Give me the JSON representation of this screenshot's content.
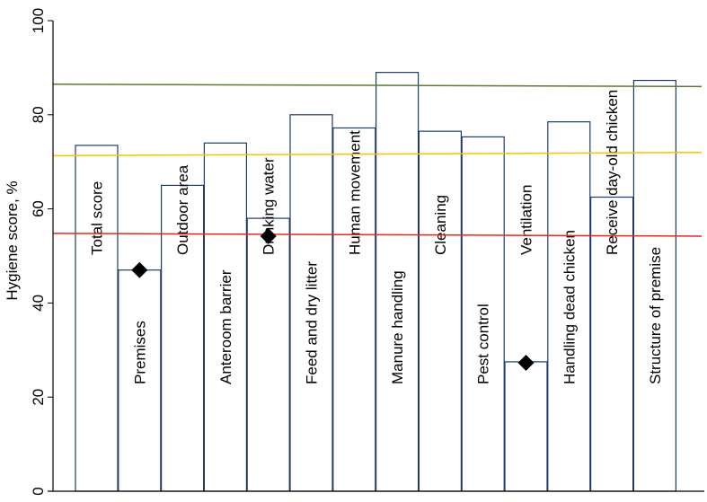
{
  "chart_data": {
    "type": "bar",
    "ylabel": "Hygiene score, %",
    "xlabel": "",
    "ylim": [
      0,
      100
    ],
    "yticks": [
      0,
      20,
      40,
      60,
      80,
      100
    ],
    "ytick_labels": [
      "0",
      "20",
      "40",
      "60",
      "80",
      "100"
    ],
    "categories": [
      "Total score",
      "Premises",
      "Outdoor area",
      "Anteroom barrier",
      "Drinking water",
      "Feed and dry litter",
      "Human movement",
      "Manure handling",
      "Cleaning",
      "Pest control",
      "Ventilation",
      "Handling dead chicken",
      "Receive day-old chicken",
      "Structure of premise"
    ],
    "values": [
      73.5,
      47,
      65,
      74,
      58,
      80,
      77.2,
      89,
      76.5,
      75.3,
      27.5,
      78.5,
      62.5,
      87.3
    ],
    "markers": [
      {
        "category": "Premises",
        "value": 47
      },
      {
        "category": "Drinking water",
        "value": 54.2
      },
      {
        "category": "Ventilation",
        "value": 27.3
      }
    ],
    "reference_lines": [
      {
        "name": "green",
        "color": "#5a7a2e",
        "start": 86.5,
        "end": 86.0
      },
      {
        "name": "yellow",
        "color": "#f5c400",
        "start": 71.3,
        "end": 72.0
      },
      {
        "name": "red",
        "color": "#e8261c",
        "start": 54.8,
        "end": 54.2
      }
    ],
    "colors": {
      "bar_edge": "#1f3a6d",
      "bar_fill": "#ffffff",
      "marker": "#000000",
      "axis": "#000000"
    }
  }
}
